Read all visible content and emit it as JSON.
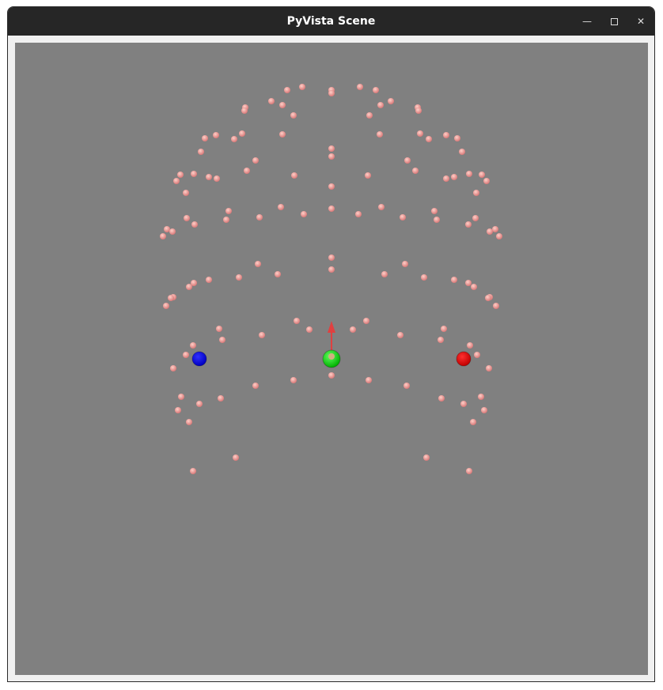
{
  "window": {
    "title": "PyVista Scene",
    "controls": {
      "minimize_icon": "minimize-icon",
      "maximize_icon": "maximize-icon",
      "close_icon": "close-icon"
    }
  },
  "scene": {
    "background_color": "#808080",
    "marker_color": "#e89090",
    "spheres": [
      {
        "name": "blue-sphere",
        "color": "#0000ff"
      },
      {
        "name": "green-sphere",
        "color": "#00ee00"
      },
      {
        "name": "red-sphere",
        "color": "#ff0000"
      }
    ],
    "arrow_color": "#e04040"
  }
}
